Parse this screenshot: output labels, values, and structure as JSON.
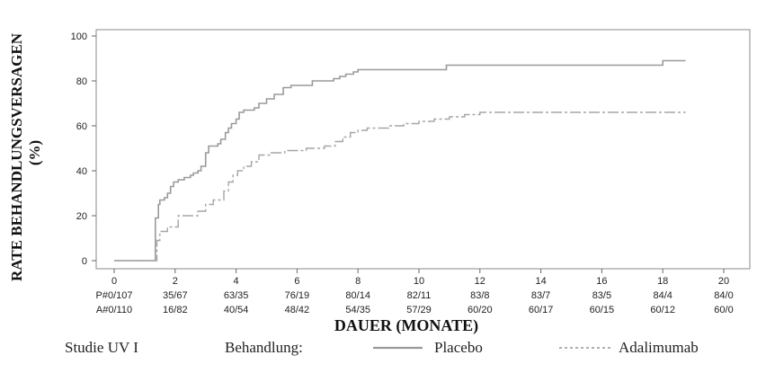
{
  "chart_data": {
    "type": "line",
    "ylabel_line1": "RATE BEHANDLUNGSVERSAGEN",
    "ylabel_line2": "(%)",
    "xlabel": "DAUER (MONATE)",
    "xlim": [
      0,
      20
    ],
    "ylim": [
      0,
      100
    ],
    "x_ticks": [
      0,
      2,
      4,
      6,
      8,
      10,
      12,
      14,
      16,
      18,
      20
    ],
    "y_ticks": [
      0,
      20,
      40,
      60,
      80,
      100
    ],
    "series": [
      {
        "name": "Placebo",
        "color": "#9a9a9a",
        "dash": "solid",
        "x": [
          0,
          1.35,
          1.35,
          1.45,
          1.5,
          1.65,
          1.75,
          1.85,
          1.95,
          2.1,
          2.3,
          2.5,
          2.6,
          2.75,
          2.85,
          3.0,
          3.1,
          3.4,
          3.5,
          3.65,
          3.75,
          3.85,
          4.0,
          4.1,
          4.25,
          4.6,
          4.75,
          5.0,
          5.25,
          5.55,
          5.8,
          6.5,
          6.8,
          7.2,
          7.4,
          7.6,
          7.85,
          8.0,
          8.4,
          10.0,
          10.9,
          18.0,
          18.75
        ],
        "y": [
          0,
          0,
          19,
          25,
          27,
          28,
          30,
          33,
          35,
          36,
          37,
          38,
          39,
          40,
          42,
          48,
          51,
          52,
          54,
          57,
          59,
          61,
          63,
          66,
          67,
          68,
          70,
          72,
          74,
          77,
          78,
          80,
          80,
          81,
          82,
          83,
          84,
          85,
          85,
          85,
          87,
          89,
          89
        ]
      },
      {
        "name": "Adalimumab",
        "color": "#a6a6a6",
        "dash": "dashed",
        "x": [
          0,
          1.4,
          1.4,
          1.5,
          1.75,
          2.1,
          2.75,
          3.0,
          3.25,
          3.6,
          3.75,
          3.9,
          4.05,
          4.25,
          4.5,
          4.75,
          5.1,
          5.6,
          6.3,
          6.9,
          7.25,
          7.5,
          7.75,
          8.0,
          8.3,
          9.0,
          9.5,
          10.0,
          10.5,
          11.0,
          11.5,
          12.0,
          14.0,
          18.75
        ],
        "y": [
          0,
          0,
          9,
          13,
          15,
          20,
          22,
          25,
          27,
          31,
          35,
          38,
          40,
          42,
          44,
          47,
          48,
          49,
          50,
          51,
          53,
          55,
          57,
          58,
          59,
          60,
          61,
          62,
          63,
          64,
          65,
          66,
          66,
          66
        ]
      }
    ],
    "risk_table": [
      {
        "label": "P#0/107",
        "values": [
          "35/67",
          "63/35",
          "76/19",
          "80/14",
          "82/11",
          "83/8",
          "83/7",
          "83/5",
          "84/4",
          "84/0"
        ]
      },
      {
        "label": "A#0/110",
        "values": [
          "16/82",
          "40/54",
          "48/42",
          "54/35",
          "57/29",
          "60/20",
          "60/17",
          "60/15",
          "60/12",
          "60/0"
        ]
      }
    ],
    "legend": {
      "study": "Studie UV I",
      "title": "Behandlung:",
      "entries": [
        "Placebo",
        "Adalimumab"
      ]
    },
    "grid": false
  }
}
